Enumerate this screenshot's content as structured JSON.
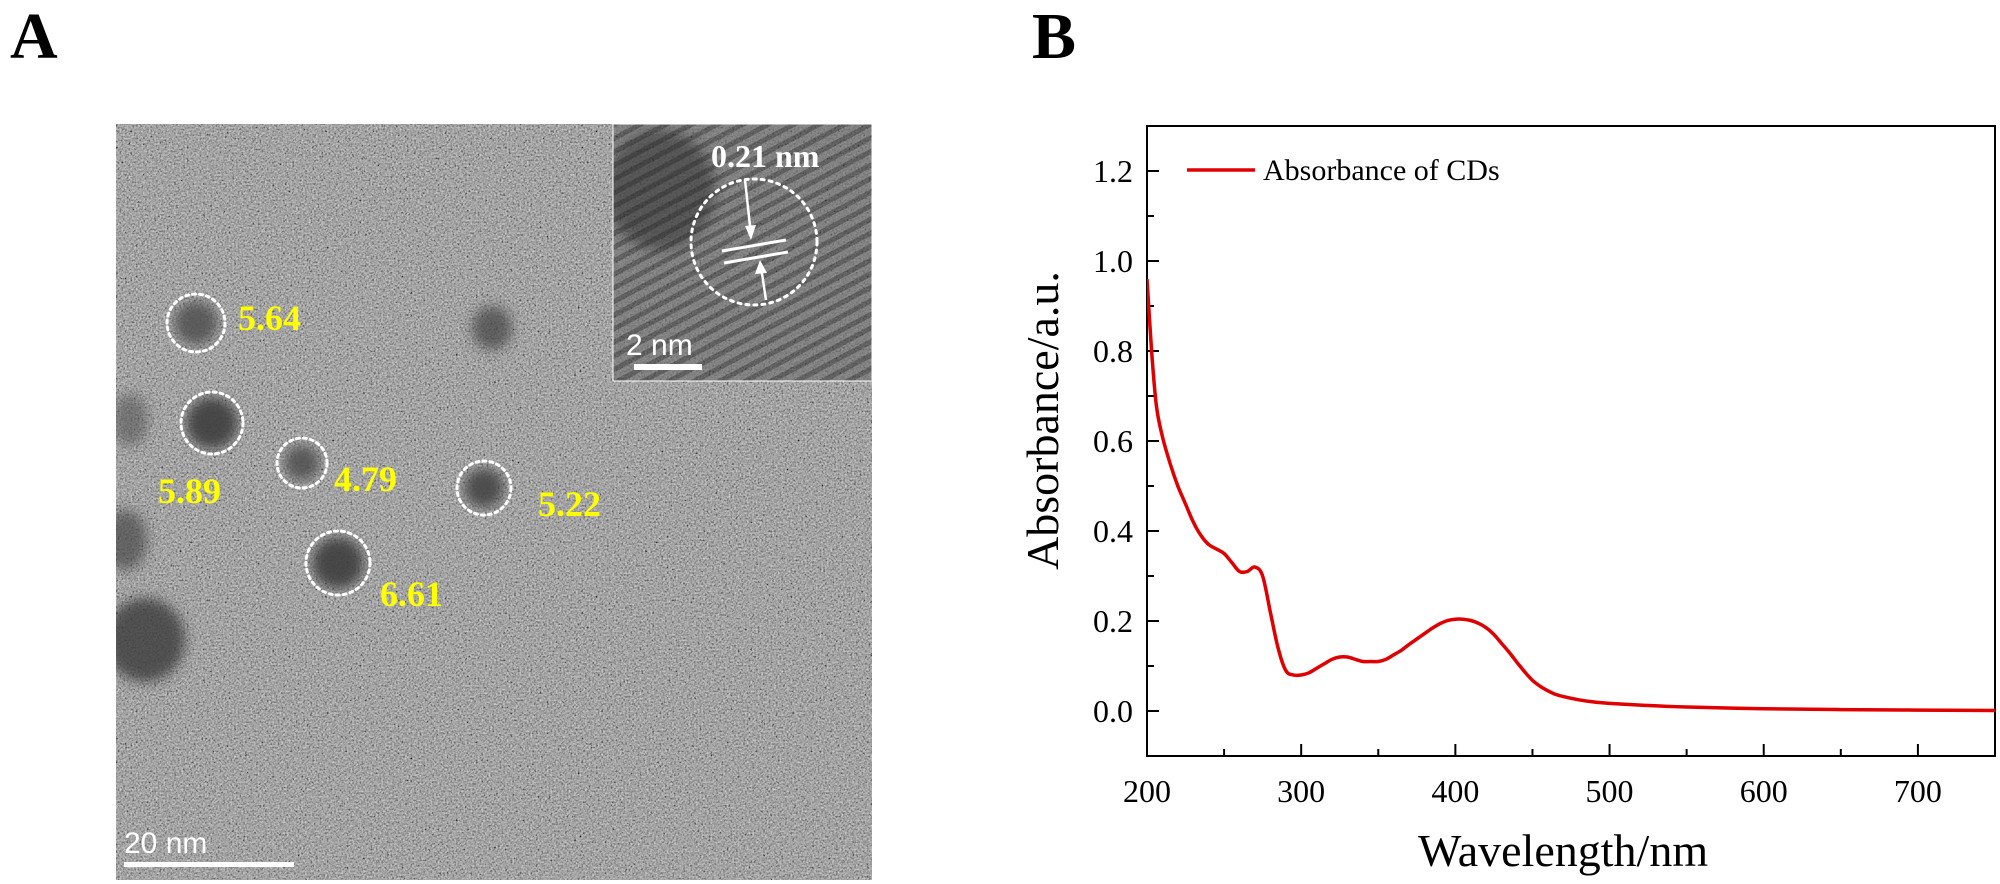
{
  "panel_a": {
    "letter": "A",
    "scale_bar_label": "20 nm",
    "inset_scale_label": "2 nm",
    "inset_measure_label": "0.21 nm",
    "particle_sizes": [
      "5.64",
      "5.89",
      "4.79",
      "5.22",
      "6.61"
    ],
    "label_color": "#ffff00"
  },
  "panel_b": {
    "letter": "B",
    "chart_data": {
      "type": "line",
      "title": "",
      "xlabel": "Wavelength/nm",
      "ylabel": "Absorbance/a.u.",
      "xlim": [
        200,
        750
      ],
      "ylim": [
        -0.1,
        1.3
      ],
      "x_ticks": [
        200,
        300,
        400,
        500,
        600,
        700
      ],
      "x_tick_labels": [
        "200",
        "300",
        "400",
        "500",
        "600",
        "700"
      ],
      "y_ticks": [
        0.0,
        0.2,
        0.4,
        0.6,
        0.8,
        1.0,
        1.2
      ],
      "y_tick_labels": [
        "0.0",
        "0.2",
        "0.4",
        "0.6",
        "0.8",
        "1.0",
        "1.2"
      ],
      "grid": false,
      "legend_position": "top-left",
      "series": [
        {
          "name": "Absorbance of CDs",
          "color": "#e00000",
          "x": [
            200,
            203,
            206,
            210,
            215,
            220,
            225,
            230,
            235,
            240,
            245,
            250,
            255,
            260,
            265,
            270,
            275,
            280,
            285,
            290,
            295,
            300,
            305,
            310,
            315,
            320,
            325,
            330,
            335,
            340,
            345,
            350,
            355,
            360,
            365,
            370,
            375,
            380,
            385,
            390,
            395,
            400,
            405,
            410,
            415,
            420,
            425,
            430,
            435,
            440,
            445,
            450,
            455,
            460,
            465,
            470,
            480,
            490,
            500,
            520,
            550,
            600,
            650,
            700,
            750
          ],
          "y": [
            0.96,
            0.8,
            0.68,
            0.61,
            0.55,
            0.5,
            0.46,
            0.42,
            0.39,
            0.37,
            0.36,
            0.35,
            0.33,
            0.31,
            0.31,
            0.32,
            0.3,
            0.22,
            0.14,
            0.09,
            0.08,
            0.08,
            0.085,
            0.095,
            0.105,
            0.115,
            0.12,
            0.12,
            0.115,
            0.11,
            0.11,
            0.11,
            0.115,
            0.125,
            0.135,
            0.148,
            0.16,
            0.172,
            0.184,
            0.194,
            0.201,
            0.204,
            0.204,
            0.201,
            0.195,
            0.185,
            0.17,
            0.15,
            0.13,
            0.108,
            0.087,
            0.068,
            0.055,
            0.045,
            0.037,
            0.032,
            0.025,
            0.02,
            0.017,
            0.013,
            0.009,
            0.005,
            0.003,
            0.002,
            0.001
          ]
        }
      ]
    }
  }
}
